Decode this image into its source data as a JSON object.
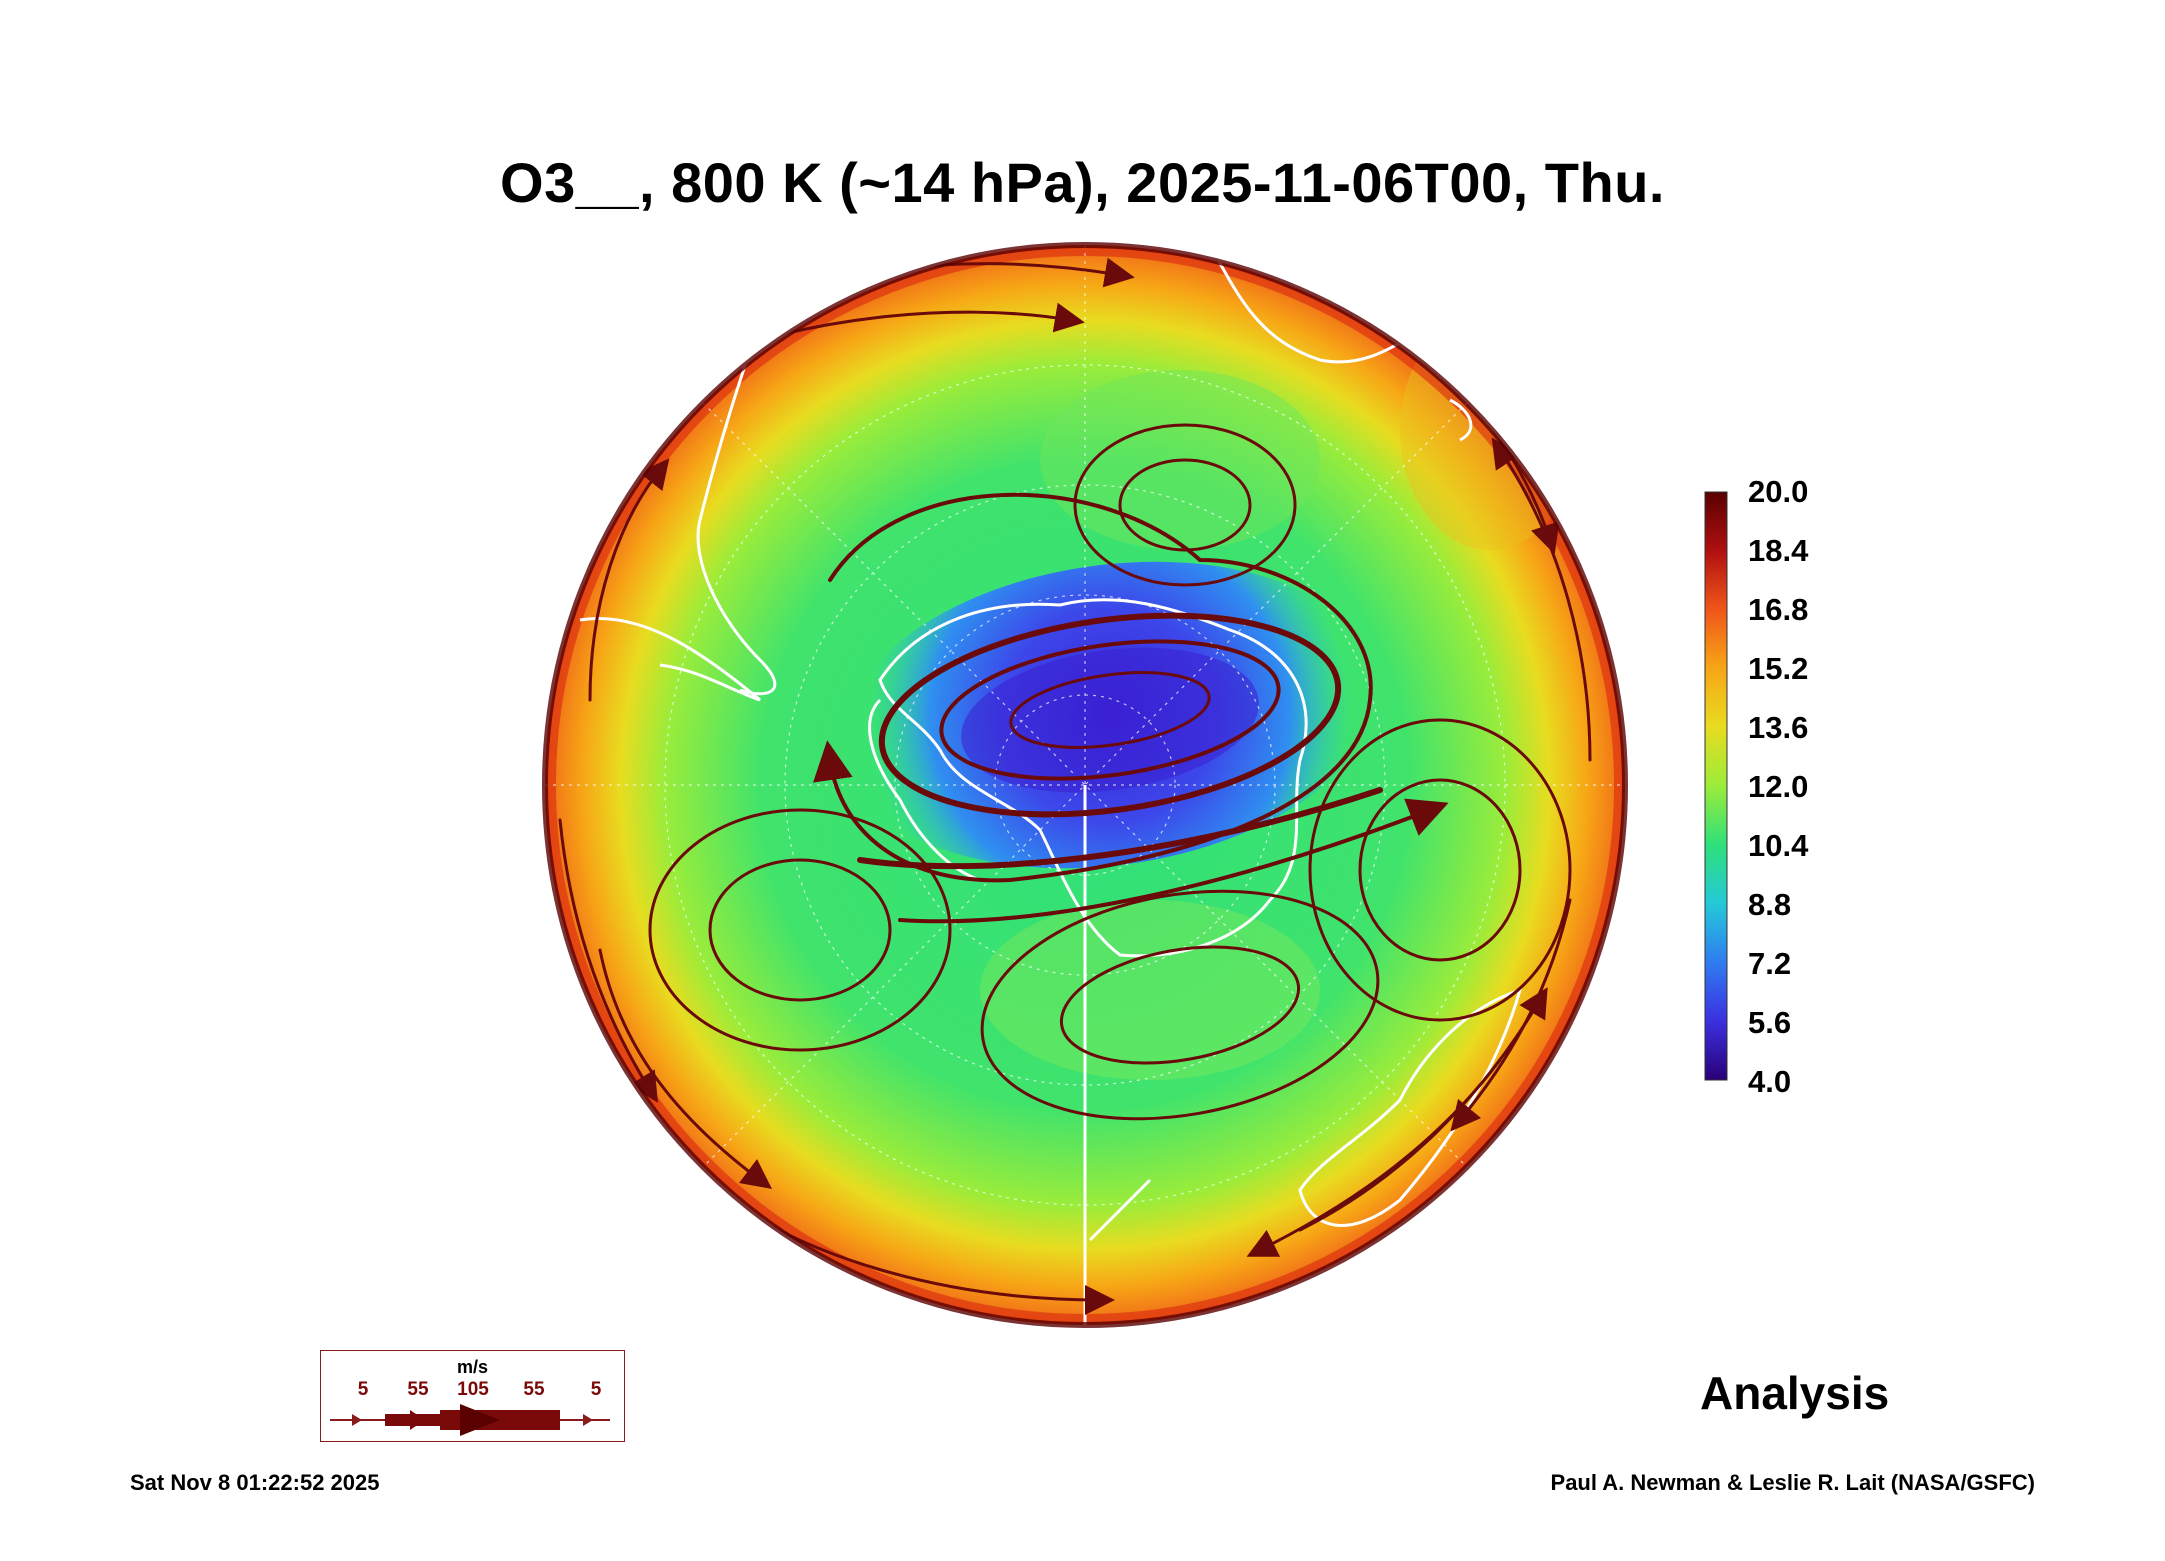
{
  "title": "O3__, 800 K (~14 hPa), 2025-11-06T00, Thu.",
  "colorbar": {
    "ticks": [
      "20.0",
      "18.4",
      "16.8",
      "15.2",
      "13.6",
      "12.0",
      "10.4",
      "8.8",
      "7.2",
      "5.6",
      "4.0"
    ],
    "min": 4.0,
    "max": 20.0,
    "colors": [
      "#2a0078",
      "#3b30e0",
      "#2f7cf0",
      "#24c9d8",
      "#2ee07a",
      "#9bec3a",
      "#e8dc20",
      "#f7a616",
      "#f0561a",
      "#b01010",
      "#5a0000"
    ]
  },
  "chart_data": {
    "type": "heatmap",
    "projection": "south polar stereographic",
    "variable": "O3__",
    "level": "800 K (~14 hPa)",
    "valid_time": "2025-11-06T00",
    "colorbar_range": [
      4.0,
      20.0
    ],
    "features": [
      {
        "name": "ozone minimum (blue region)",
        "approx_value": 5.6
      },
      {
        "name": "polar vortex streamlines",
        "approx_value": null
      },
      {
        "name": "mid-latitude band",
        "approx_value": 11.0
      },
      {
        "name": "outer edge high ozone",
        "approx_value": 16.8
      }
    ]
  },
  "wind_legend": {
    "unit": "m/s",
    "speeds": [
      "5",
      "55",
      "105",
      "55",
      "5"
    ]
  },
  "analysis_label": "Analysis",
  "timestamp": "Sat Nov  8 01:22:52 2025",
  "credit": "Paul A. Newman & Leslie R. Lait (NASA/GSFC)"
}
